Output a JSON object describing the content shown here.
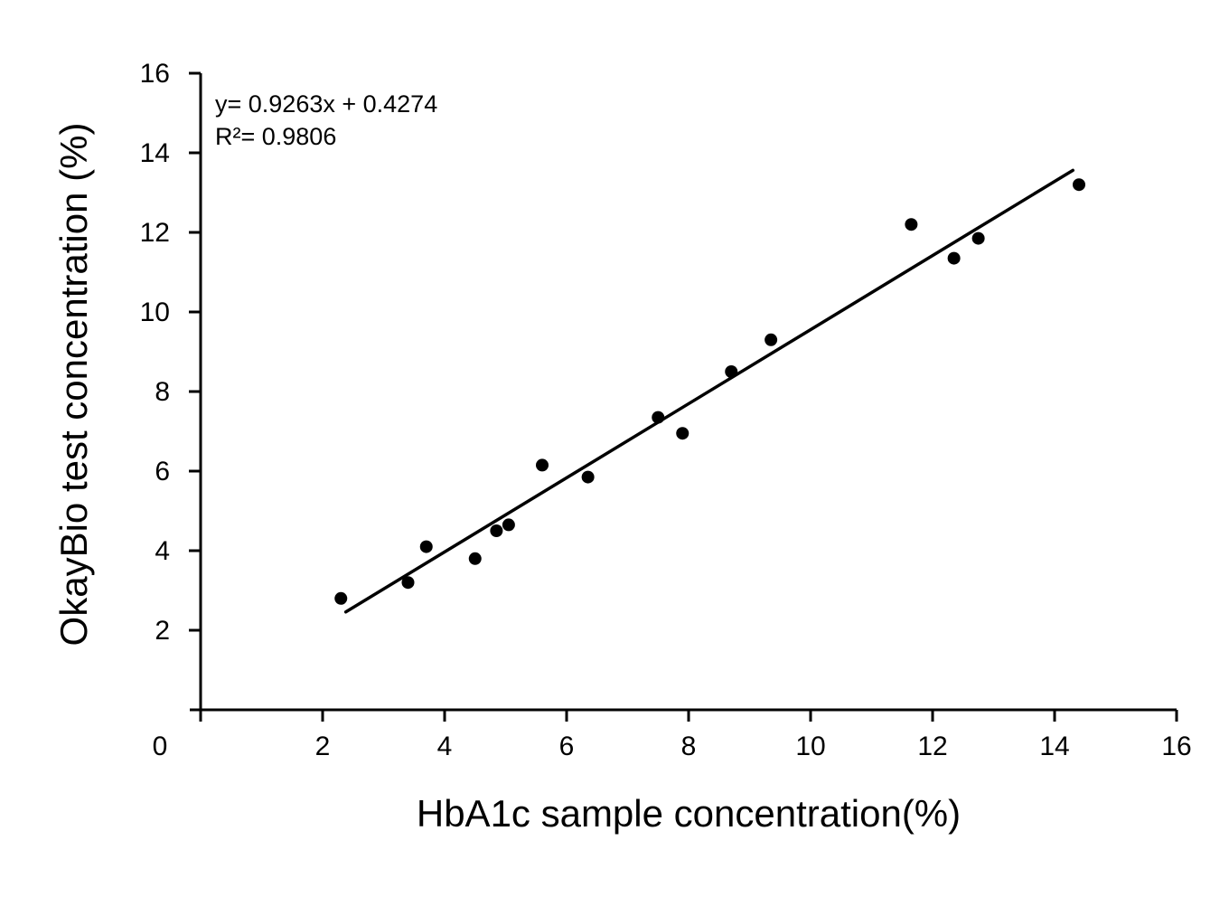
{
  "chart_data": {
    "type": "scatter",
    "title": "",
    "xlabel": "HbA1c sample concentration(%)",
    "ylabel": "OkayBio test concentration (%)",
    "xlim": [
      0,
      16
    ],
    "ylim": [
      0,
      16
    ],
    "x_ticks": [
      0,
      2,
      4,
      6,
      8,
      10,
      12,
      14,
      16
    ],
    "y_ticks": [
      2,
      4,
      6,
      8,
      10,
      12,
      14,
      16
    ],
    "grid": false,
    "legend": "none",
    "annotation": {
      "equation": "y= 0.9263x + 0.4274",
      "r_squared": "R²= 0.9806"
    },
    "trendline": {
      "slope": 0.9263,
      "intercept": 0.4274,
      "r2": 0.9806,
      "draw": {
        "x1": 2.38,
        "y1": 2.46,
        "x2": 14.3,
        "y2": 13.56
      }
    },
    "points": [
      [
        2.3,
        2.8
      ],
      [
        3.4,
        3.2
      ],
      [
        3.7,
        4.1
      ],
      [
        4.5,
        3.8
      ],
      [
        4.85,
        4.5
      ],
      [
        5.05,
        4.65
      ],
      [
        5.6,
        6.15
      ],
      [
        6.35,
        5.85
      ],
      [
        7.5,
        7.35
      ],
      [
        7.9,
        6.95
      ],
      [
        8.7,
        8.5
      ],
      [
        9.35,
        9.3
      ],
      [
        11.65,
        12.2
      ],
      [
        12.35,
        11.35
      ],
      [
        12.75,
        11.85
      ],
      [
        14.4,
        13.2
      ]
    ],
    "colors": {
      "marker": "#000000",
      "line": "#000000",
      "axis": "#000000",
      "text": "#000000",
      "background": "#ffffff"
    }
  }
}
